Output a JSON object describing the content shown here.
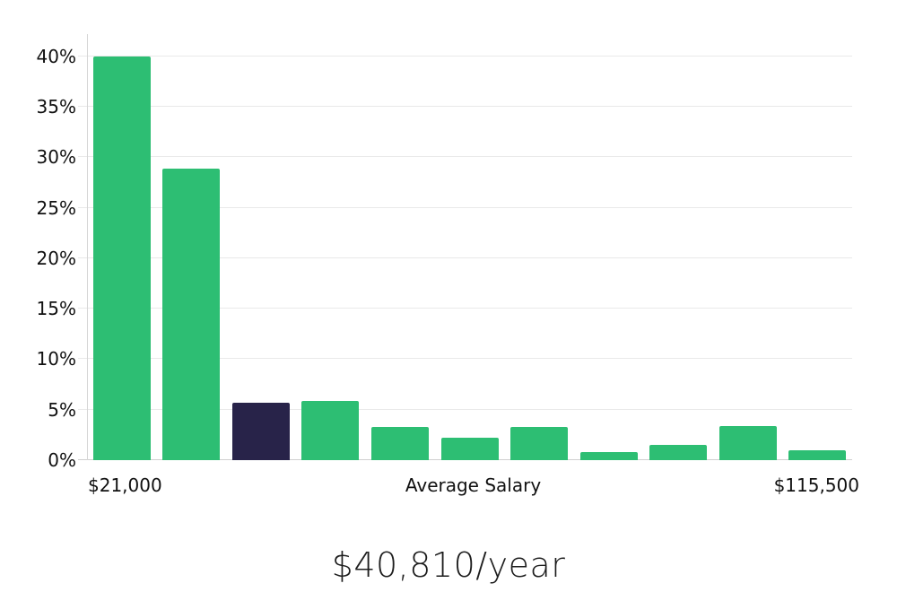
{
  "chart_data": {
    "type": "bar",
    "title": "$40,810/year",
    "xlabel": "Average Salary",
    "ylabel": "",
    "x_axis_labels": {
      "left": "$21,000",
      "center": "Average Salary",
      "right": "$115,500"
    },
    "y_tick_values": [
      0,
      5,
      10,
      15,
      20,
      25,
      30,
      35,
      40
    ],
    "y_tick_labels": [
      "0%",
      "5%",
      "10%",
      "15%",
      "20%",
      "25%",
      "30%",
      "35%",
      "40%"
    ],
    "ylim": [
      0,
      42.2
    ],
    "grid": true,
    "legend": false,
    "values": [
      40.0,
      28.9,
      5.7,
      5.9,
      3.3,
      2.2,
      3.3,
      0.8,
      1.5,
      3.4,
      1.0
    ],
    "highlighted_bar_index": 2,
    "colors": {
      "bar": "#2dbe73",
      "highlighted_bar": "#282349",
      "gridline": "#e9e9e9",
      "baseline": "#cfcfcf",
      "axis_line": "#d6d6d6",
      "axis_text": "#111111",
      "title_text": "#1d1d1d"
    }
  }
}
